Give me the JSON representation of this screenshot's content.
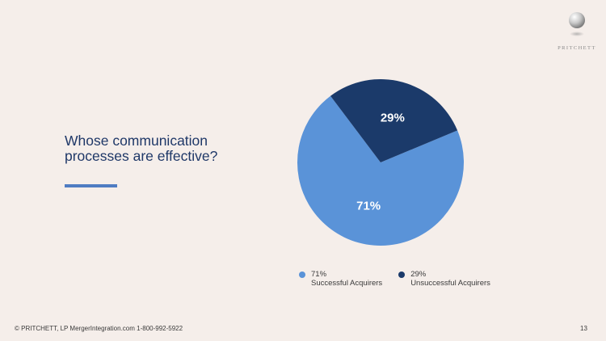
{
  "logo": {
    "text": "PRITCHETT",
    "icon": "sphere-logo-icon"
  },
  "question": {
    "text": "Whose communication processes are effective?"
  },
  "colors": {
    "background": "#f5eeea",
    "title": "#1f3868",
    "accent": "#4f7cc2",
    "successful": "#5a93d8",
    "unsuccessful": "#1b3a6a"
  },
  "chart_data": {
    "type": "pie",
    "title": "",
    "slices": [
      {
        "label": "Successful Acquirers",
        "value": 71,
        "display": "71%",
        "color": "#5a93d8"
      },
      {
        "label": "Unsuccessful Acquirers",
        "value": 29,
        "display": "29%",
        "color": "#1b3a6a"
      }
    ],
    "legend_position": "bottom"
  },
  "footer": {
    "text": "© PRITCHETT, LP MergerIntegration.com 1-800-992-5922",
    "page_number": "13"
  }
}
